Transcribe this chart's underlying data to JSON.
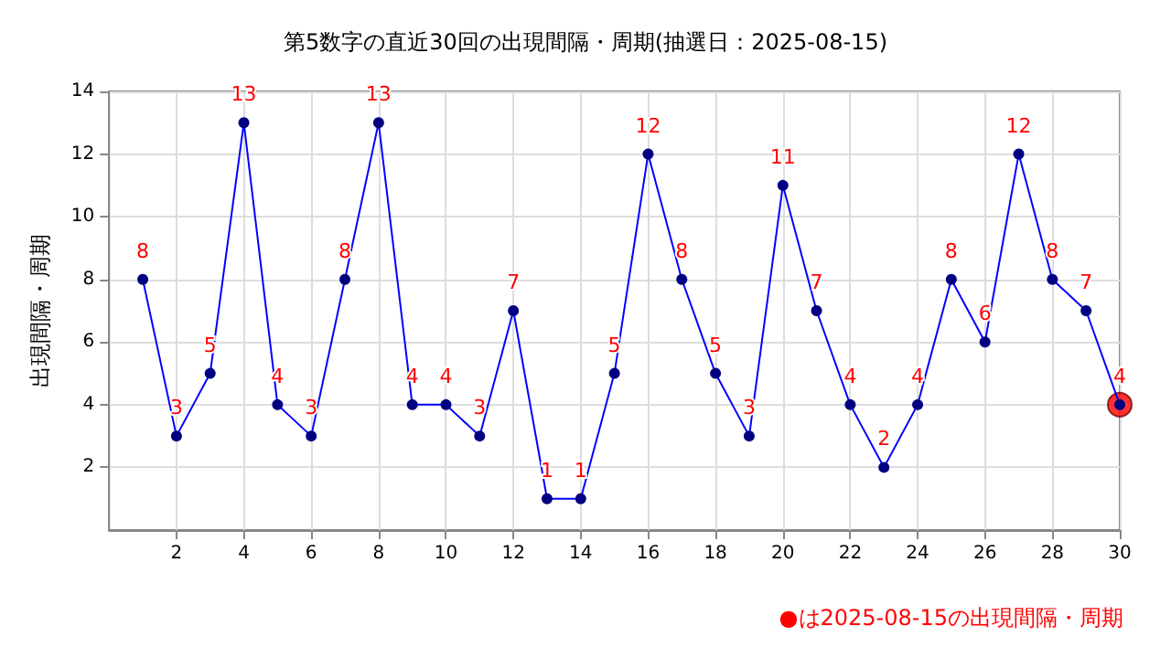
{
  "chart_data": {
    "type": "line",
    "title": "第5数字の直近30回の出現間隔・周期(抽選日：2025-08-15)",
    "ylabel": "出現間隔・周期",
    "x": [
      1,
      2,
      3,
      4,
      5,
      6,
      7,
      8,
      9,
      10,
      11,
      12,
      13,
      14,
      15,
      16,
      17,
      18,
      19,
      20,
      21,
      22,
      23,
      24,
      25,
      26,
      27,
      28,
      29,
      30
    ],
    "series": [
      {
        "color": "#0000ff",
        "values": [
          8,
          3,
          5,
          13,
          4,
          3,
          8,
          13,
          4,
          4,
          3,
          7,
          1,
          1,
          5,
          12,
          8,
          5,
          3,
          11,
          7,
          4,
          2,
          4,
          8,
          6,
          12,
          8,
          7,
          4
        ],
        "value_labels": [
          "8",
          "3",
          "5",
          "13",
          "4",
          "3",
          "8",
          "13",
          "4",
          "4",
          "3",
          "7",
          "1",
          "1",
          "5",
          "12",
          "8",
          "5",
          "3",
          "11",
          "7",
          "4",
          "2",
          "4",
          "8",
          "6",
          "12",
          "8",
          "7",
          "4"
        ]
      },
      {
        "type": "scatter",
        "color": "#ff0000",
        "x": [
          30
        ],
        "values": [
          4
        ]
      }
    ],
    "xlim": [
      0,
      30
    ],
    "xticks": [
      2,
      4,
      6,
      8,
      10,
      12,
      14,
      16,
      18,
      20,
      22,
      24,
      26,
      28,
      30
    ],
    "ylim": [
      0,
      14
    ],
    "yticks": [
      2,
      4,
      6,
      8,
      10,
      12,
      14
    ],
    "grid": true,
    "marker": "circle",
    "line_style": "solid",
    "annotations": [
      "●は2025-08-15の出現間隔・周期"
    ]
  }
}
